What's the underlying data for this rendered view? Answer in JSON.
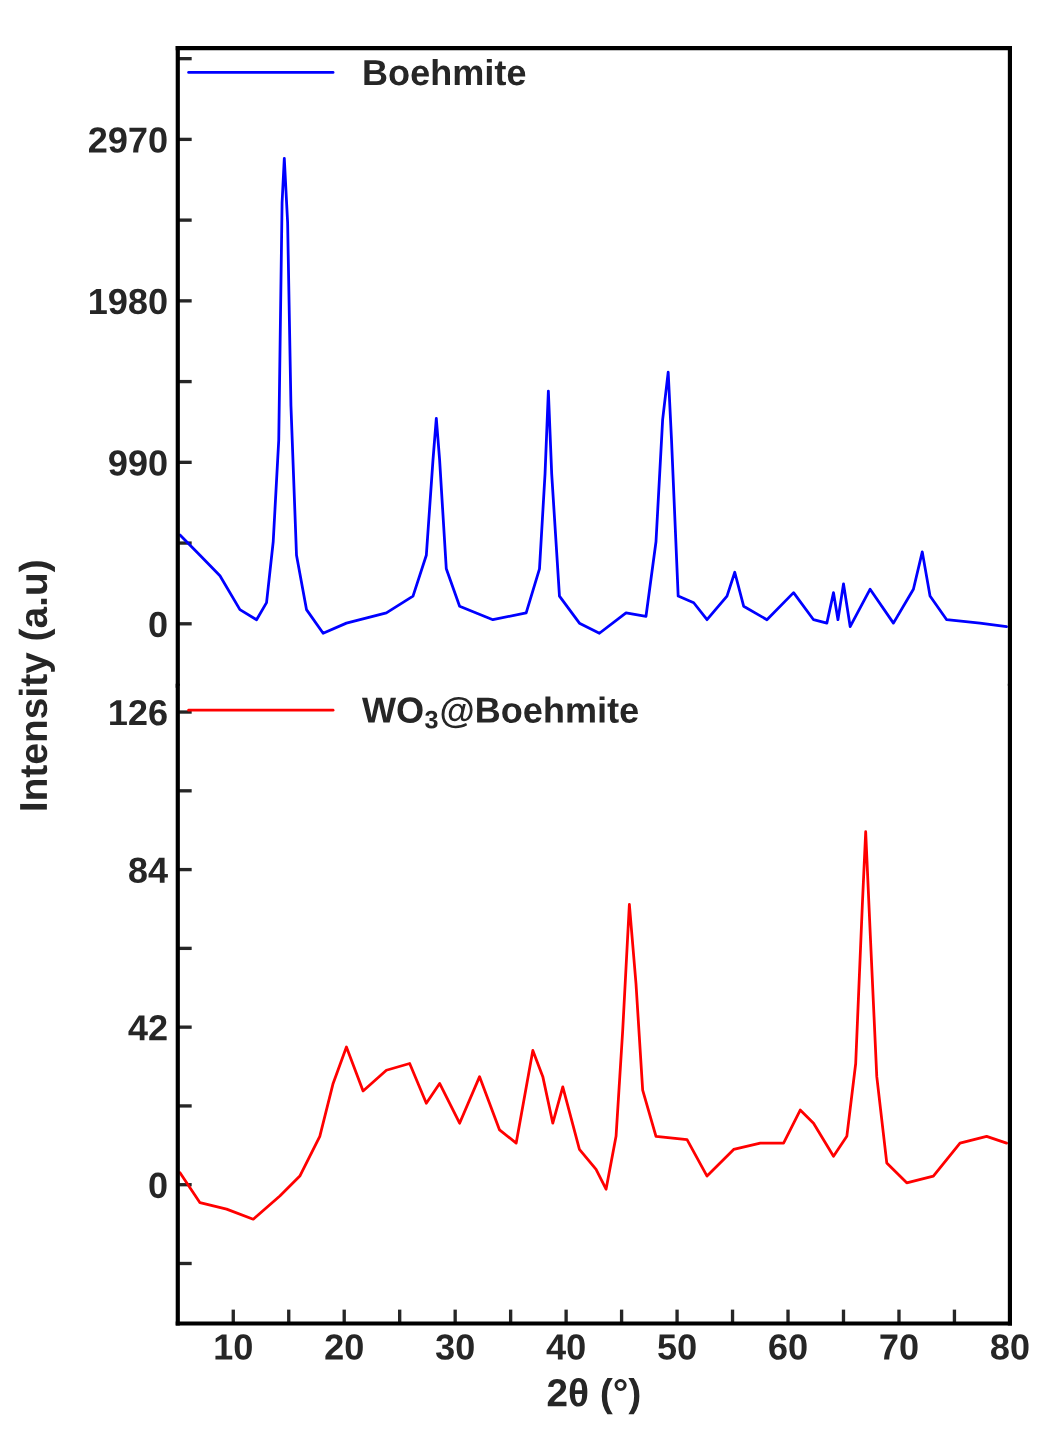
{
  "chart_data": [
    {
      "type": "line",
      "ylabel": "Intensity (a.u)",
      "legend": "top left",
      "tick_labels": "y",
      "xlim": [
        5,
        80
      ],
      "ylim": [
        -380,
        3530
      ],
      "yticks": [
        0,
        {
          "value": 495,
          "label": null
        },
        990,
        {
          "value": 1485,
          "label": null
        },
        1980,
        {
          "value": 2475,
          "label": null
        },
        2970,
        {
          "value": 3465,
          "label": null
        }
      ],
      "series": [
        {
          "name": "Boehmite",
          "color": "#0000ff",
          "x": [
            5.2,
            7.0,
            8.8,
            10.6,
            12.1,
            13.0,
            13.6,
            14.1,
            14.4,
            14.6,
            14.9,
            15.2,
            15.7,
            16.6,
            18.1,
            20.2,
            23.8,
            26.2,
            27.4,
            28.0,
            28.3,
            28.6,
            29.2,
            30.4,
            33.4,
            36.4,
            37.6,
            38.1,
            38.4,
            38.7,
            39.4,
            41.2,
            43.0,
            45.4,
            47.2,
            48.1,
            48.7,
            49.2,
            49.5,
            50.1,
            51.5,
            52.7,
            54.5,
            55.2,
            56.0,
            58.1,
            60.5,
            62.3,
            63.5,
            64.1,
            64.5,
            65.0,
            65.6,
            67.4,
            69.5,
            71.3,
            72.1,
            72.8,
            74.3,
            77.3,
            79.7
          ],
          "values": [
            545,
            420,
            295,
            87,
            25,
            130,
            503,
            1127,
            2583,
            2854,
            2459,
            1335,
            420,
            87,
            -58,
            4,
            67,
            170,
            420,
            1003,
            1260,
            1003,
            337,
            108,
            25,
            67,
            337,
            919,
            1427,
            919,
            170,
            4,
            -58,
            67,
            46,
            503,
            1252,
            1543,
            1127,
            170,
            129,
            25,
            170,
            316,
            108,
            25,
            191,
            25,
            4,
            191,
            25,
            245,
            -17,
            212,
            4,
            212,
            441,
            170,
            25,
            4,
            -17
          ]
        }
      ]
    },
    {
      "type": "line",
      "xlabel": "2θ (°)",
      "legend": "top left",
      "xlim": [
        5,
        80
      ],
      "ylim": [
        -37,
        133
      ],
      "xticks": [
        10,
        {
          "value": 15,
          "label": null
        },
        20,
        {
          "value": 25,
          "label": null
        },
        30,
        {
          "value": 35,
          "label": null
        },
        40,
        {
          "value": 45,
          "label": null
        },
        50,
        {
          "value": 55,
          "label": null
        },
        60,
        {
          "value": 65,
          "label": null
        },
        70,
        {
          "value": 75,
          "label": null
        },
        80
      ],
      "yticks": [
        {
          "value": -21,
          "label": null
        },
        0,
        {
          "value": 21,
          "label": null
        },
        42,
        {
          "value": 63,
          "label": null
        },
        84,
        {
          "value": 105,
          "label": null
        },
        126
      ],
      "series": [
        {
          "name": "WO$_{3}$@Boehmite",
          "color": "#ff0000",
          "x": [
            5.2,
            7.0,
            9.4,
            11.8,
            14.2,
            16.0,
            17.8,
            19.0,
            20.2,
            21.7,
            23.8,
            25.9,
            27.4,
            28.6,
            30.4,
            32.2,
            34.0,
            35.5,
            37.0,
            37.9,
            38.8,
            39.7,
            41.2,
            42.7,
            43.6,
            44.5,
            45.1,
            45.7,
            46.3,
            46.9,
            48.1,
            50.9,
            52.7,
            55.1,
            57.5,
            59.6,
            61.1,
            62.3,
            64.1,
            65.3,
            66.1,
            66.7,
            67.0,
            67.4,
            68.0,
            68.9,
            70.7,
            73.1,
            75.5,
            77.9,
            79.7
          ],
          "values": [
            3.2,
            -4.8,
            -6.5,
            -9.2,
            -3.0,
            2.3,
            12.9,
            27,
            36.7,
            25,
            30.5,
            32.3,
            21.7,
            27,
            16.4,
            28.8,
            14.6,
            11.1,
            35.8,
            28.8,
            16.4,
            26.1,
            9.4,
            4.1,
            -1.2,
            12.9,
            41.1,
            74.7,
            53.5,
            25.2,
            12.9,
            12.0,
            2.3,
            9.4,
            11.1,
            11.1,
            19.9,
            16.4,
            7.6,
            12.9,
            32.3,
            74.7,
            94.1,
            67.6,
            28.8,
            5.8,
            0.5,
            2.3,
            11.1,
            12.9,
            11.1
          ]
        }
      ]
    }
  ]
}
